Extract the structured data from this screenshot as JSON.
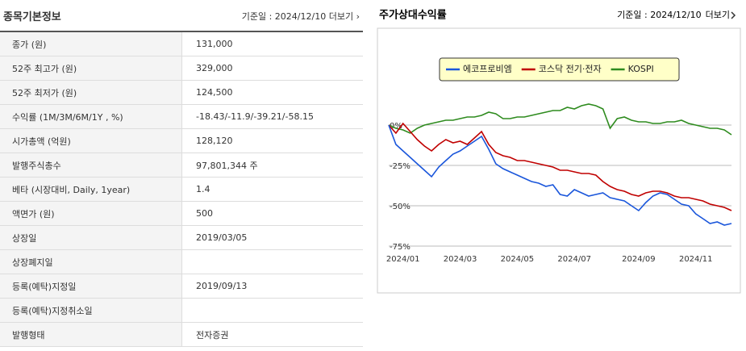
{
  "info": {
    "title": "종목기본정보",
    "date": "기준일 : 2024/12/10",
    "more": "더보기",
    "rows": [
      {
        "label": "종가 (원)",
        "value": "131,000"
      },
      {
        "label": "52주 최고가 (원)",
        "value": "329,000"
      },
      {
        "label": "52주 최저가 (원)",
        "value": "124,500"
      },
      {
        "label": "수익률 (1M/3M/6M/1Y , %)",
        "value": "-18.43/-11.9/-39.21/-58.15"
      },
      {
        "label": "시가총액 (억원)",
        "value": "128,120"
      },
      {
        "label": "발행주식총수",
        "value": "97,801,344 주"
      },
      {
        "label": "베타 (시장대비, Daily, 1year)",
        "value": "1.4"
      },
      {
        "label": "액면가 (원)",
        "value": "500"
      },
      {
        "label": "상장일",
        "value": "2019/03/05"
      },
      {
        "label": "상장폐지일"
      },
      {
        "label": "등록(예탁)지정일",
        "value": "2019/09/13"
      },
      {
        "label": "등록(예탁)지정취소일"
      },
      {
        "label": "발행형태",
        "value": "전자증권"
      }
    ]
  },
  "chart_data": {
    "type": "line",
    "title": "주가상대수익률",
    "date": "기준일 : 2024/12/10",
    "more": "더보기",
    "categories": [
      null,
      null,
      "2024/01",
      null,
      null,
      null,
      null,
      null,
      null,
      null,
      "2024/03",
      null,
      null,
      null,
      null,
      null,
      null,
      null,
      "2024/05",
      null,
      null,
      null,
      null,
      null,
      null,
      null,
      "2024/07",
      null,
      null,
      null,
      null,
      null,
      null,
      null,
      null,
      "2024/09",
      null,
      null,
      null,
      null,
      null,
      null,
      null,
      "2024/11",
      null,
      null,
      null,
      null,
      null
    ],
    "series": [
      {
        "name": "에코프로비엠",
        "color": "#1a56db",
        "values": [
          0,
          -12,
          -16,
          -20,
          -24,
          -28,
          -32,
          -26,
          -22,
          -18,
          -16,
          -13,
          -10,
          -7,
          -15,
          -24,
          -27,
          -29,
          -31,
          -33,
          -35,
          -36,
          -38,
          -37,
          -43,
          -44,
          -40,
          -42,
          -44,
          -43,
          -42,
          -45,
          -46,
          -47,
          -50,
          -53,
          -48,
          -44,
          -42,
          -43,
          -46,
          -49,
          -50,
          -55,
          -58,
          -61,
          -60,
          -62,
          -61
        ]
      },
      {
        "name": "코스닥 전기·전자",
        "color": "#c00000",
        "values": [
          0,
          -5,
          1,
          -4,
          -9,
          -13,
          -16,
          -12,
          -9,
          -11,
          -10,
          -12,
          -8,
          -4,
          -12,
          -17,
          -19,
          -20,
          -22,
          -22,
          -23,
          -24,
          -25,
          -26,
          -28,
          -28,
          -29,
          -30,
          -30,
          -31,
          -35,
          -38,
          -40,
          -41,
          -43,
          -44,
          -42,
          -41,
          -41,
          -42,
          -44,
          -45,
          -45,
          -46,
          -47,
          -49,
          -50,
          -51,
          -53
        ]
      },
      {
        "name": "KOSPI",
        "color": "#2e8b1e",
        "values": [
          0,
          -2,
          -3,
          -5,
          -2,
          0,
          1,
          2,
          3,
          3,
          4,
          5,
          5,
          6,
          8,
          7,
          4,
          4,
          5,
          5,
          6,
          7,
          8,
          9,
          9,
          11,
          10,
          12,
          13,
          12,
          10,
          -2,
          4,
          5,
          3,
          2,
          2,
          1,
          1,
          2,
          2,
          3,
          1,
          0,
          -1,
          -2,
          -2,
          -3,
          -6
        ]
      }
    ],
    "ylim": [
      -80,
      20
    ],
    "yticks": [
      {
        "value": 0,
        "label": "0%"
      },
      {
        "value": -25,
        "label": "-25%"
      },
      {
        "value": -50,
        "label": "-50%"
      },
      {
        "value": -75,
        "label": "-75%"
      }
    ],
    "grid": true
  }
}
